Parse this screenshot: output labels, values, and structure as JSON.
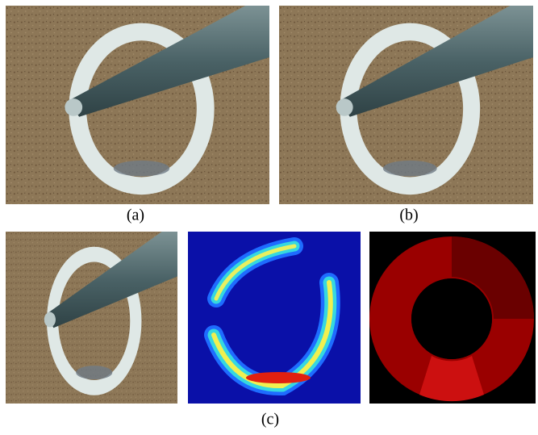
{
  "captions": {
    "a": "(a)",
    "b": "(b)",
    "c": "(c)"
  }
}
